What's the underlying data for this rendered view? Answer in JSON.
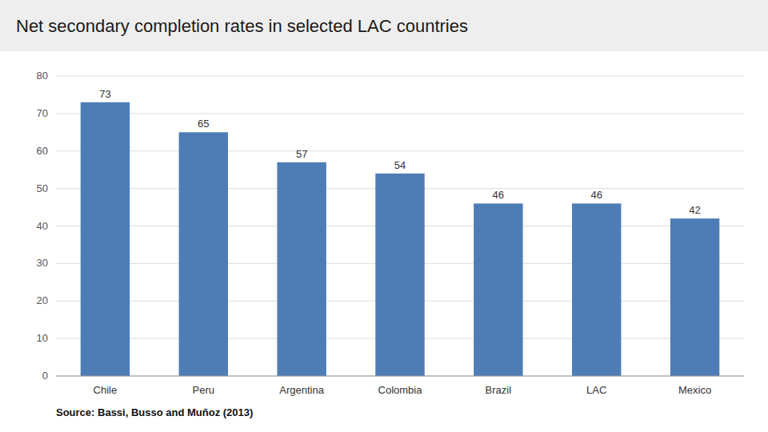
{
  "chart_data": {
    "type": "bar",
    "title": "Net secondary completion rates in selected LAC countries",
    "categories": [
      "Chile",
      "Peru",
      "Argentina",
      "Colombia",
      "Brazil",
      "LAC",
      "Mexico"
    ],
    "values": [
      73,
      65,
      57,
      54,
      46,
      46,
      42
    ],
    "color": "#4E7DB5",
    "ylim": [
      0,
      80
    ],
    "yticks": [
      0,
      10,
      20,
      30,
      40,
      50,
      60,
      70,
      80
    ],
    "grid": true,
    "data_labels": true,
    "annotations": [
      "Source: Bassi, Busso and Muñoz (2013)"
    ]
  }
}
